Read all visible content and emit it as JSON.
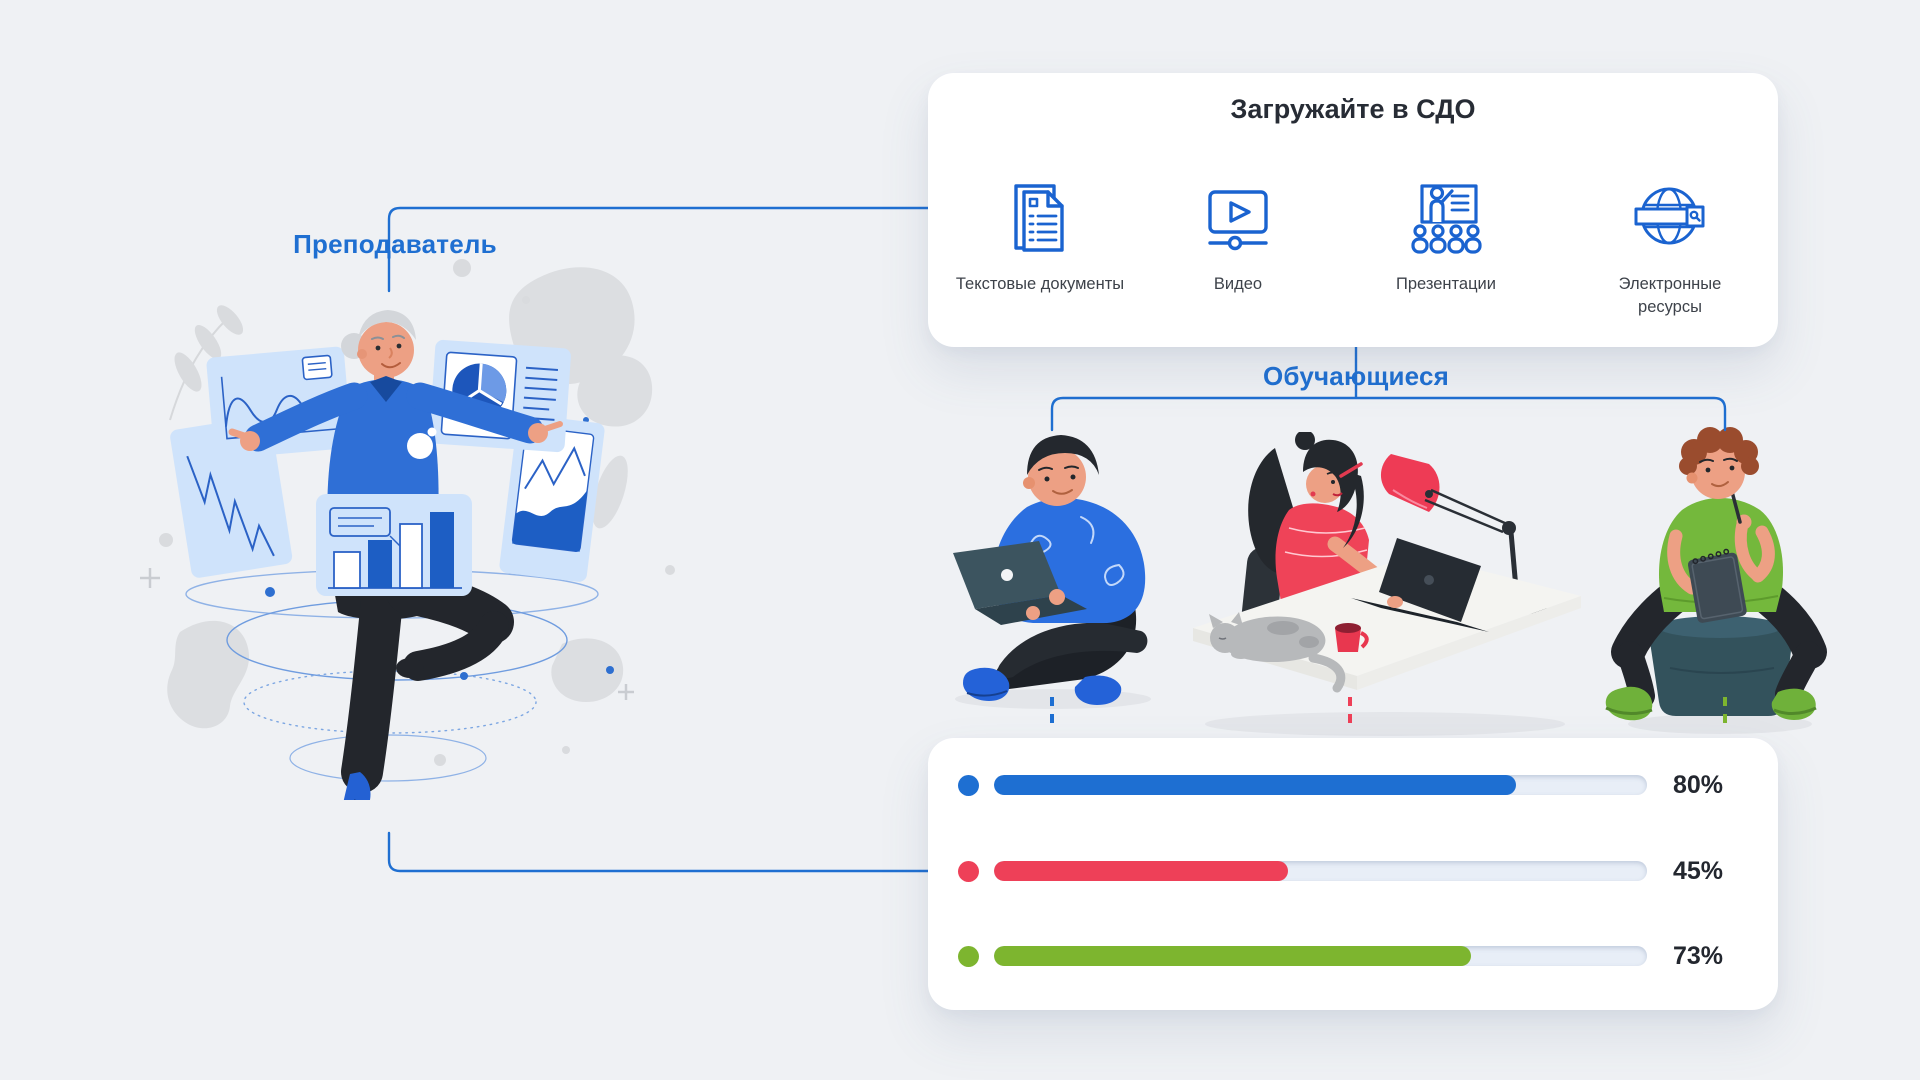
{
  "page": {
    "background_color": "#eff1f4",
    "accent_blue": "#1f6fd1"
  },
  "teacher": {
    "label": "Преподаватель"
  },
  "students": {
    "label": "Обучающиеся"
  },
  "upload_card": {
    "title": "Загружайте в СДО",
    "items": [
      {
        "icon": "text-documents-icon",
        "label": "Текстовые документы"
      },
      {
        "icon": "video-icon",
        "label": "Видео"
      },
      {
        "icon": "presentation-icon",
        "label": "Презентации"
      },
      {
        "icon": "e-resources-icon",
        "label": "Электронные ресурсы"
      }
    ]
  },
  "progress_card": {
    "track_color": "#e8eef7",
    "rows": [
      {
        "label": "80%",
        "value": 80,
        "color": "#1e6fd2"
      },
      {
        "label": "45%",
        "value": 45,
        "color": "#ee4058"
      },
      {
        "label": "73%",
        "value": 73,
        "color": "#7db52f"
      }
    ]
  },
  "connectors": {
    "color": "#1f6fd1"
  }
}
